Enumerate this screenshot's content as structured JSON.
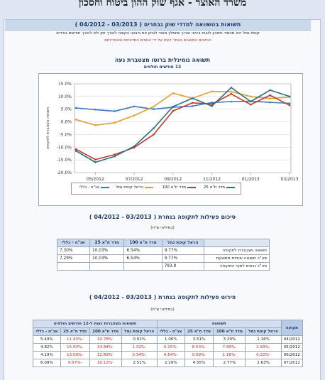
{
  "header": {
    "ministry": "משרד האוצר - אגף שוק ההון ביטוח וחסכון",
    "title": "תשואות בהשוואה למדדי שוק נבחרים",
    "date_range": "( 03/2013 - 04/2012 )",
    "note1": "קופת גמל היא מכשיר חיסכון לטווח ביניוני וארוך ומומלץ מאוד לבחון את ביצועי הקופה לאורך זמן ולא לאורך חודשים בודדים",
    "note2": "הנתונים המוצגים באתר דווחו על ידי הגופים המדווחים ובאחריותם"
  },
  "chart": {
    "title": "תשואה נומינלית ברוטו מצטברת נעה",
    "subtitle": "12 חודשים חולפים"
  },
  "chart_data": {
    "type": "line",
    "x": [
      "04/2012",
      "05/2012",
      "06/2012",
      "07/2012",
      "08/2012",
      "09/2012",
      "10/2012",
      "11/2012",
      "12/2012",
      "01/2013",
      "02/2013",
      "03/2013"
    ],
    "x_ticks": [
      "05/2012",
      "07/2012",
      "09/2012",
      "11/2012",
      "01/2013",
      "03/2013"
    ],
    "xlabel": "תקופת דיווח",
    "ylabel": "תשואה מצטברת לתקופה",
    "ylim": [
      -20,
      15
    ],
    "y_ticks": [
      "15.0%",
      "10.0%",
      "5.0%",
      "0.0%",
      "-5.0%",
      "-10.0%",
      "-15.0%",
      "-20.0%"
    ],
    "grid": true,
    "legend": "bottom",
    "series": [
      {
        "name": "אג\"ח - כללי",
        "color": "#3a78c4",
        "values": [
          5.49,
          4.82,
          4.19,
          6.09,
          5.0,
          5.8,
          6.2,
          7.6,
          8.0,
          8.1,
          7.7,
          7.3
        ]
      },
      {
        "name": "הראל קופת גמל",
        "color": "#e0a030",
        "values": [
          0.91,
          -1.32,
          -0.34,
          2.51,
          6.0,
          11.3,
          9.3,
          12.0,
          11.9,
          10.0,
          9.2,
          9.77
        ]
      },
      {
        "name": "מדד ת\"א 100",
        "color": "#c0392b",
        "values": [
          -10.78,
          -14.84,
          -12.89,
          -10.12,
          -5.0,
          4.3,
          7.5,
          7.0,
          11.0,
          6.8,
          10.5,
          6.54
        ]
      },
      {
        "name": "מדד ת\"א 25",
        "color": "#2a6f80",
        "values": [
          -11.43,
          -15.93,
          -13.59,
          -9.67,
          -2.5,
          6.0,
          9.3,
          6.2,
          13.5,
          8.0,
          12.5,
          10.03
        ]
      }
    ]
  },
  "summary": {
    "title": "סיכום פעילות לתקופה בנחרת",
    "date_range": "( 03/2013 - 04/2012 )",
    "units": "(במיליוני ש\"ח)",
    "columns": [
      "הראל קופת גמל",
      "מדד ת\"א 100",
      "מדד ת\"א 25",
      "אג\"ח - כללי"
    ],
    "rows": [
      {
        "label": "תשואה מצטברת לתקופה",
        "values": [
          "9.77%",
          "6.54%",
          "10.03%",
          "7.30%"
        ]
      },
      {
        "label": "סה\"כ תשואה שנתית ממוצעת",
        "values": [
          "9.77%",
          "6.54%",
          "10.03%",
          "7.29%"
        ]
      },
      {
        "label": "סה\"כ נכסים לסוף התקופה",
        "values": [
          "793.8",
          "",
          "",
          ""
        ]
      }
    ]
  },
  "detail": {
    "title": "פירוט פעילות לתקופה בנחרת",
    "date_range": "( 03/2013 - 04/2012 )",
    "units": "(במיליוני ש\"ח)",
    "group_period": "תקופה",
    "group_returns": "תשואות",
    "group_cumulative": "תשואות מצטברות נעות ל-12 חודשים חולפים",
    "columns": [
      "הראל קופת גמל",
      "מדד ת\"א 100",
      "מדד ת\"א 25",
      "אג\"ח - כללי"
    ],
    "rows": [
      {
        "period": "04/2012",
        "returns": [
          "1.16%",
          "3.29%",
          "3.51%",
          "1.06%"
        ],
        "cumulative": [
          "0.91%",
          "-10.78%",
          "-11.43%",
          "5.49%"
        ]
      },
      {
        "period": "05/2012",
        "returns": [
          "-2.93%",
          "-7.99%",
          "-8.53%",
          "-0.15%"
        ],
        "cumulative": [
          "-1.32%",
          "-14.84%",
          "-15.93%",
          "4.82%"
        ]
      },
      {
        "period": "06/2012",
        "returns": [
          "-0.22%",
          "-1.16%",
          "-0.69%",
          "-0.64%"
        ],
        "cumulative": [
          "-0.34%",
          "-12.89%",
          "-13.59%",
          "4.19%"
        ]
      },
      {
        "period": "07/2012",
        "returns": [
          "2.63%",
          "2.77%",
          "4.55%",
          "2.29%"
        ],
        "cumulative": [
          "2.51%",
          "-10.12%",
          "-9.67%",
          "6.09%"
        ]
      }
    ]
  }
}
